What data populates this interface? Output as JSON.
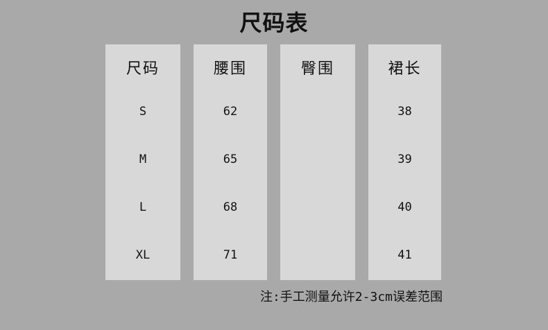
{
  "title": "尺码表",
  "columns": [
    {
      "header": "尺码",
      "values": [
        "S",
        "M",
        "L",
        "XL"
      ]
    },
    {
      "header": "腰围",
      "values": [
        "62",
        "65",
        "68",
        "71"
      ]
    },
    {
      "header": "臀围",
      "values": [
        "",
        "",
        "",
        ""
      ]
    },
    {
      "header": "裙长",
      "values": [
        "38",
        "39",
        "40",
        "41"
      ]
    }
  ],
  "note": "注:手工测量允许2-3cm误差范围",
  "colors": {
    "background": "#a9a9a9",
    "panel": "#d8d8d8"
  }
}
